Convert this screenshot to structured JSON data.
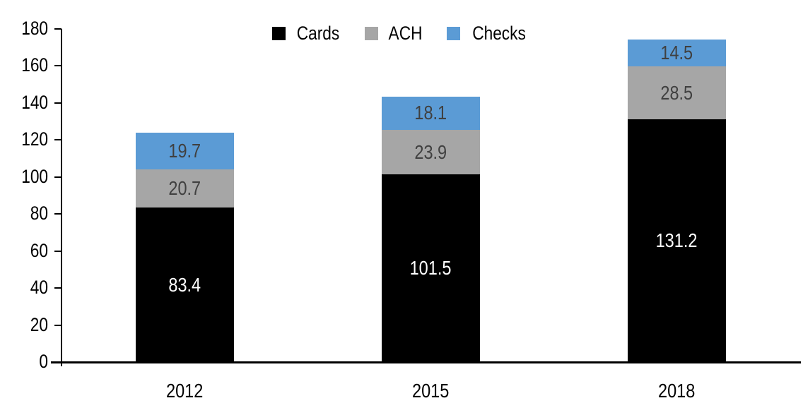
{
  "chart_data": {
    "type": "bar",
    "stacked": true,
    "title": "",
    "xlabel": "",
    "ylabel": "",
    "categories": [
      "2012",
      "2015",
      "2018"
    ],
    "series": [
      {
        "name": "Cards",
        "values": [
          83.4,
          101.5,
          131.2
        ],
        "color": "#000000",
        "label_color": "#FFFFFF"
      },
      {
        "name": "ACH",
        "values": [
          20.7,
          23.9,
          28.5
        ],
        "color": "#A6A6A6",
        "label_color": "#404040"
      },
      {
        "name": "Checks",
        "values": [
          19.7,
          18.1,
          14.5
        ],
        "color": "#5B9BD5",
        "label_color": "#404040"
      }
    ],
    "yticks": [
      0,
      20,
      40,
      60,
      80,
      100,
      120,
      140,
      160,
      180
    ],
    "ylim": [
      0,
      180
    ],
    "grid": false,
    "data_labels": true,
    "data_label_decimals": 1,
    "legend_position": "top-center",
    "legend_order": [
      "Cards",
      "ACH",
      "Checks"
    ],
    "axis_color": "#000000",
    "background_color": "#FFFFFF"
  }
}
